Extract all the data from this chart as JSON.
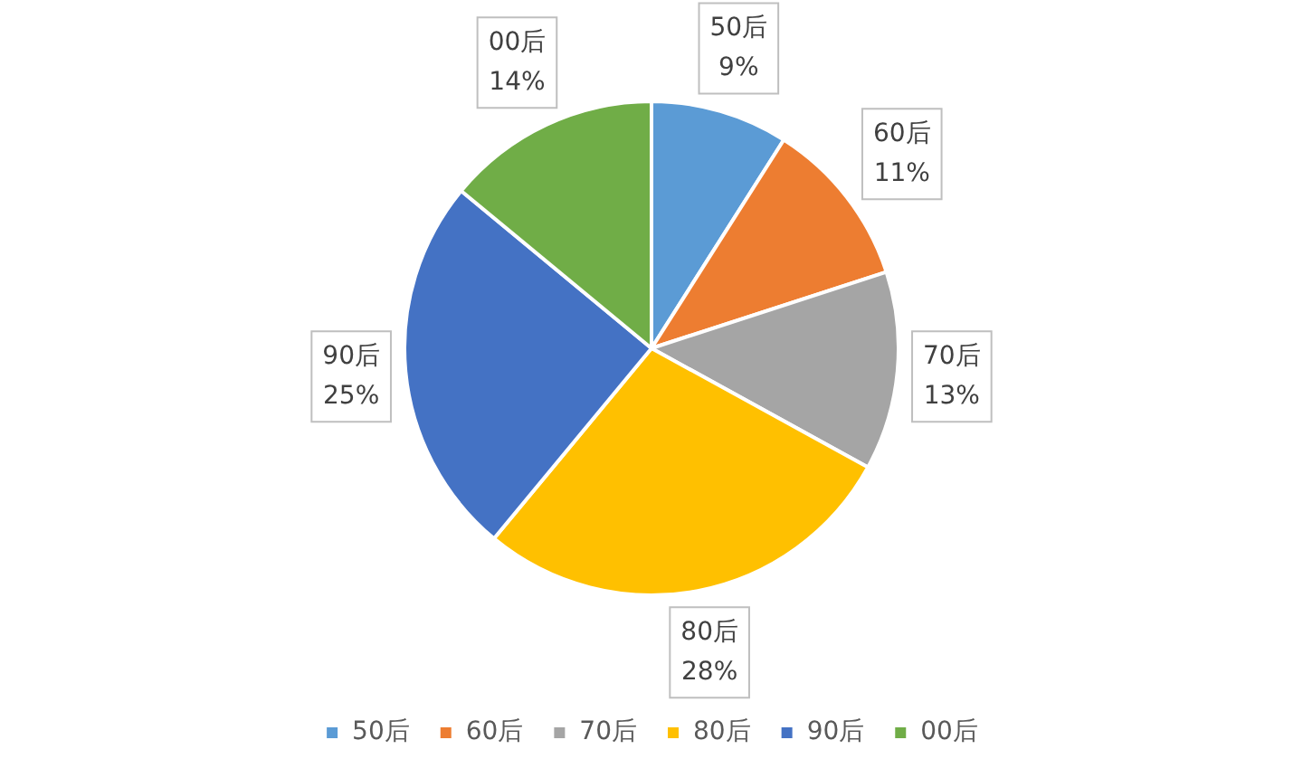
{
  "chart_data": {
    "type": "pie",
    "categories": [
      "50后",
      "60后",
      "70后",
      "80后",
      "90后",
      "00后"
    ],
    "values": [
      9,
      11,
      13,
      28,
      25,
      14
    ],
    "value_labels": [
      "9%",
      "11%",
      "13%",
      "28%",
      "25%",
      "14%"
    ],
    "colors": [
      "#5b9bd5",
      "#ed7d31",
      "#a5a5a5",
      "#ffc000",
      "#4472c4",
      "#70ad47"
    ],
    "legend": "bottom"
  }
}
